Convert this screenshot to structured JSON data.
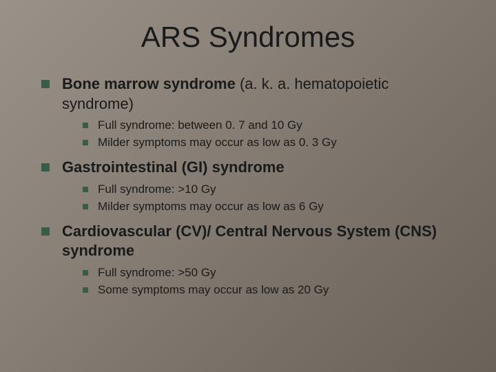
{
  "slide": {
    "title": "ARS Syndromes",
    "background": {
      "gradient_start": "#9a9288",
      "gradient_end": "#6a6258"
    },
    "bullet_color": "#3a5a4a",
    "text_color": "#1a1a1a",
    "title_fontsize": 42,
    "level1_fontsize": 22,
    "level2_fontsize": 17,
    "items": [
      {
        "bold": "Bone marrow syndrome",
        "rest": " (a. k. a. hematopoietic syndrome)",
        "sub": [
          "Full syndrome: between 0. 7 and 10 Gy",
          "Milder symptoms may occur as low as 0. 3 Gy"
        ]
      },
      {
        "bold": "Gastrointestinal (GI) syndrome",
        "rest": "",
        "sub": [
          "Full syndrome: >10 Gy",
          "Milder symptoms may occur as low as 6 Gy"
        ]
      },
      {
        "bold": "Cardiovascular (CV)/ Central Nervous System (CNS) syndrome",
        "rest": "",
        "sub": [
          "Full syndrome: >50 Gy",
          "Some symptoms may occur as low as 20 Gy"
        ]
      }
    ]
  }
}
